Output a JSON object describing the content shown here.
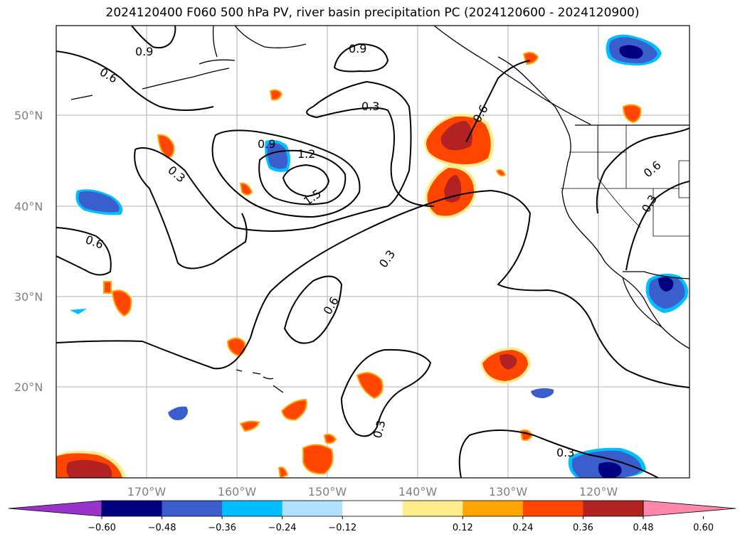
{
  "title": "2024120400 F060 500 hPa PV, river basin precipitation PC (2024120600 - 2024120900)",
  "map": {
    "lat_labels": [
      "50°N",
      "40°N",
      "30°N",
      "20°N"
    ],
    "lon_labels": [
      "170°W",
      "160°W",
      "150°W",
      "140°W",
      "130°W",
      "120°W"
    ],
    "contour_labels": [
      "0.9",
      "0.9",
      "0.6",
      "0.3",
      "0.6",
      "0.9",
      "1.2",
      "1.5",
      "0.3",
      "0.6",
      "0.3",
      "0.6",
      "0.3",
      "0.3",
      "0.6",
      "0.3"
    ],
    "colors": {
      "land": "#000000",
      "grid": "#b0b0b0",
      "contour": "#000000"
    }
  },
  "colorbar": {
    "ticks": [
      "−0.60",
      "−0.48",
      "−0.36",
      "−0.24",
      "−0.12",
      "0.12",
      "0.24",
      "0.36",
      "0.48",
      "0.60"
    ],
    "colors": [
      "#9933cc",
      "#000080",
      "#3a5fcd",
      "#00bfff",
      "#b0e2ff",
      "#ffffff",
      "#ffec8b",
      "#ffa500",
      "#ff4500",
      "#b22222",
      "#ff88aa"
    ]
  }
}
